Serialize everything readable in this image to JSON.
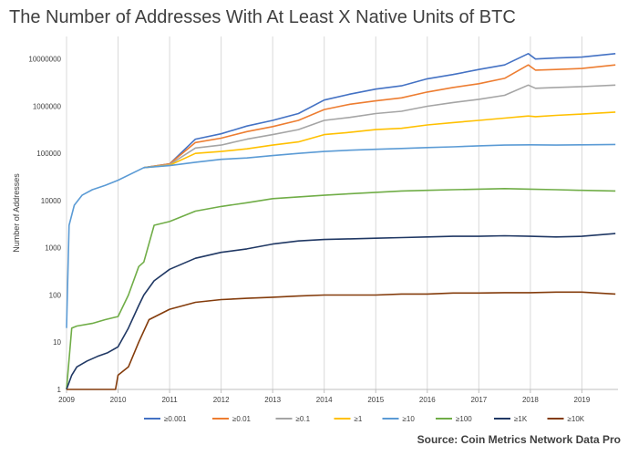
{
  "page": {
    "title": "The Number of Addresses With At Least X Native Units of BTC",
    "source": "Source: Coin Metrics Network Data Pro"
  },
  "chart_data": {
    "type": "line",
    "title": "The Number of Addresses With At Least X Native Units of BTC",
    "xlabel": "",
    "ylabel": "Number of Addresses",
    "y_scale": "log",
    "ylim": [
      1,
      30000000
    ],
    "xlim": [
      2009.0,
      2019.7
    ],
    "y_ticks": [
      "1",
      "10",
      "100",
      "1000",
      "10000",
      "100000",
      "1000000",
      "10000000"
    ],
    "x_ticks": [
      "2009",
      "2010",
      "2011",
      "2012",
      "2013",
      "2014",
      "2015",
      "2016",
      "2017",
      "2018",
      "2019"
    ],
    "grid": "vertical",
    "legend_position": "bottom",
    "series": [
      {
        "name": "≥0.001",
        "color": "#4472C4",
        "points": [
          [
            2010.5,
            50000
          ],
          [
            2011.0,
            60000
          ],
          [
            2011.5,
            200000
          ],
          [
            2012.0,
            260000
          ],
          [
            2012.5,
            380000
          ],
          [
            2013.0,
            500000
          ],
          [
            2013.5,
            700000
          ],
          [
            2014.0,
            1350000
          ],
          [
            2014.5,
            1800000
          ],
          [
            2015.0,
            2300000
          ],
          [
            2015.5,
            2700000
          ],
          [
            2016.0,
            3800000
          ],
          [
            2016.5,
            4700000
          ],
          [
            2017.0,
            6000000
          ],
          [
            2017.5,
            7500000
          ],
          [
            2017.96,
            13000000
          ],
          [
            2018.1,
            10000000
          ],
          [
            2018.5,
            10500000
          ],
          [
            2019.0,
            11000000
          ],
          [
            2019.65,
            13000000
          ]
        ]
      },
      {
        "name": "≥0.01",
        "color": "#ED7D31",
        "points": [
          [
            2010.5,
            50000
          ],
          [
            2011.0,
            60000
          ],
          [
            2011.5,
            170000
          ],
          [
            2012.0,
            210000
          ],
          [
            2012.5,
            290000
          ],
          [
            2013.0,
            370000
          ],
          [
            2013.5,
            500000
          ],
          [
            2014.0,
            850000
          ],
          [
            2014.5,
            1100000
          ],
          [
            2015.0,
            1300000
          ],
          [
            2015.5,
            1500000
          ],
          [
            2016.0,
            2000000
          ],
          [
            2016.5,
            2500000
          ],
          [
            2017.0,
            3000000
          ],
          [
            2017.5,
            3900000
          ],
          [
            2017.96,
            7500000
          ],
          [
            2018.1,
            5800000
          ],
          [
            2018.5,
            6000000
          ],
          [
            2019.0,
            6300000
          ],
          [
            2019.65,
            7500000
          ]
        ]
      },
      {
        "name": "≥0.1",
        "color": "#A5A5A5",
        "points": [
          [
            2010.5,
            50000
          ],
          [
            2011.0,
            58000
          ],
          [
            2011.5,
            130000
          ],
          [
            2012.0,
            150000
          ],
          [
            2012.5,
            200000
          ],
          [
            2013.0,
            250000
          ],
          [
            2013.5,
            320000
          ],
          [
            2014.0,
            500000
          ],
          [
            2014.5,
            580000
          ],
          [
            2015.0,
            700000
          ],
          [
            2015.5,
            780000
          ],
          [
            2016.0,
            1000000
          ],
          [
            2016.5,
            1200000
          ],
          [
            2017.0,
            1400000
          ],
          [
            2017.5,
            1700000
          ],
          [
            2017.96,
            2800000
          ],
          [
            2018.1,
            2400000
          ],
          [
            2018.5,
            2500000
          ],
          [
            2019.0,
            2600000
          ],
          [
            2019.65,
            2800000
          ]
        ]
      },
      {
        "name": "≥1",
        "color": "#FFC000",
        "points": [
          [
            2010.5,
            50000
          ],
          [
            2011.0,
            56000
          ],
          [
            2011.5,
            100000
          ],
          [
            2012.0,
            110000
          ],
          [
            2012.5,
            125000
          ],
          [
            2013.0,
            150000
          ],
          [
            2013.5,
            175000
          ],
          [
            2014.0,
            250000
          ],
          [
            2014.5,
            280000
          ],
          [
            2015.0,
            320000
          ],
          [
            2015.5,
            340000
          ],
          [
            2016.0,
            400000
          ],
          [
            2016.5,
            450000
          ],
          [
            2017.0,
            500000
          ],
          [
            2017.5,
            560000
          ],
          [
            2017.96,
            620000
          ],
          [
            2018.1,
            600000
          ],
          [
            2018.5,
            640000
          ],
          [
            2019.0,
            680000
          ],
          [
            2019.65,
            750000
          ]
        ]
      },
      {
        "name": "≥10",
        "color": "#5B9BD5",
        "points": [
          [
            2009.0,
            20
          ],
          [
            2009.05,
            3000
          ],
          [
            2009.15,
            8000
          ],
          [
            2009.3,
            13000
          ],
          [
            2009.5,
            17000
          ],
          [
            2009.75,
            21000
          ],
          [
            2010.0,
            27000
          ],
          [
            2010.5,
            50000
          ],
          [
            2011.0,
            55000
          ],
          [
            2011.5,
            65000
          ],
          [
            2012.0,
            75000
          ],
          [
            2012.5,
            80000
          ],
          [
            2013.0,
            90000
          ],
          [
            2013.5,
            100000
          ],
          [
            2014.0,
            110000
          ],
          [
            2014.5,
            117000
          ],
          [
            2015.0,
            122000
          ],
          [
            2015.5,
            127000
          ],
          [
            2016.0,
            133000
          ],
          [
            2016.5,
            138000
          ],
          [
            2017.0,
            145000
          ],
          [
            2017.5,
            150000
          ],
          [
            2018.0,
            152000
          ],
          [
            2018.5,
            150000
          ],
          [
            2019.0,
            152000
          ],
          [
            2019.65,
            155000
          ]
        ]
      },
      {
        "name": "≥100",
        "color": "#70AD47",
        "points": [
          [
            2009.0,
            1
          ],
          [
            2009.1,
            20
          ],
          [
            2009.2,
            22
          ],
          [
            2009.5,
            25
          ],
          [
            2009.75,
            30
          ],
          [
            2010.0,
            35
          ],
          [
            2010.2,
            100
          ],
          [
            2010.4,
            400
          ],
          [
            2010.5,
            500
          ],
          [
            2010.7,
            3000
          ],
          [
            2011.0,
            3600
          ],
          [
            2011.5,
            6000
          ],
          [
            2012.0,
            7500
          ],
          [
            2012.5,
            9000
          ],
          [
            2013.0,
            11000
          ],
          [
            2013.5,
            12000
          ],
          [
            2014.0,
            13000
          ],
          [
            2014.5,
            14000
          ],
          [
            2015.0,
            15000
          ],
          [
            2015.5,
            16000
          ],
          [
            2016.0,
            16500
          ],
          [
            2016.5,
            17000
          ],
          [
            2017.0,
            17500
          ],
          [
            2017.5,
            18000
          ],
          [
            2018.0,
            17500
          ],
          [
            2018.5,
            17000
          ],
          [
            2019.0,
            16500
          ],
          [
            2019.65,
            16000
          ]
        ]
      },
      {
        "name": "≥1K",
        "color": "#203864",
        "points": [
          [
            2009.0,
            1
          ],
          [
            2009.1,
            2
          ],
          [
            2009.2,
            3
          ],
          [
            2009.4,
            4
          ],
          [
            2009.6,
            5
          ],
          [
            2009.8,
            6
          ],
          [
            2010.0,
            8
          ],
          [
            2010.2,
            20
          ],
          [
            2010.4,
            60
          ],
          [
            2010.5,
            100
          ],
          [
            2010.7,
            200
          ],
          [
            2011.0,
            350
          ],
          [
            2011.5,
            600
          ],
          [
            2012.0,
            800
          ],
          [
            2012.5,
            950
          ],
          [
            2013.0,
            1200
          ],
          [
            2013.5,
            1400
          ],
          [
            2014.0,
            1500
          ],
          [
            2014.5,
            1550
          ],
          [
            2015.0,
            1600
          ],
          [
            2015.5,
            1650
          ],
          [
            2016.0,
            1700
          ],
          [
            2016.5,
            1750
          ],
          [
            2017.0,
            1750
          ],
          [
            2017.5,
            1800
          ],
          [
            2018.0,
            1750
          ],
          [
            2018.5,
            1700
          ],
          [
            2019.0,
            1750
          ],
          [
            2019.65,
            2000
          ]
        ]
      },
      {
        "name": "≥10K",
        "color": "#843C0C",
        "points": [
          [
            2009.0,
            1
          ],
          [
            2009.95,
            1
          ],
          [
            2010.0,
            2
          ],
          [
            2010.2,
            3
          ],
          [
            2010.4,
            10
          ],
          [
            2010.6,
            30
          ],
          [
            2011.0,
            50
          ],
          [
            2011.5,
            70
          ],
          [
            2012.0,
            80
          ],
          [
            2012.5,
            85
          ],
          [
            2013.0,
            90
          ],
          [
            2013.5,
            95
          ],
          [
            2014.0,
            100
          ],
          [
            2014.5,
            100
          ],
          [
            2015.0,
            100
          ],
          [
            2015.5,
            105
          ],
          [
            2016.0,
            105
          ],
          [
            2016.5,
            110
          ],
          [
            2017.0,
            110
          ],
          [
            2017.5,
            112
          ],
          [
            2018.0,
            112
          ],
          [
            2018.5,
            115
          ],
          [
            2019.0,
            115
          ],
          [
            2019.65,
            105
          ]
        ]
      }
    ]
  }
}
